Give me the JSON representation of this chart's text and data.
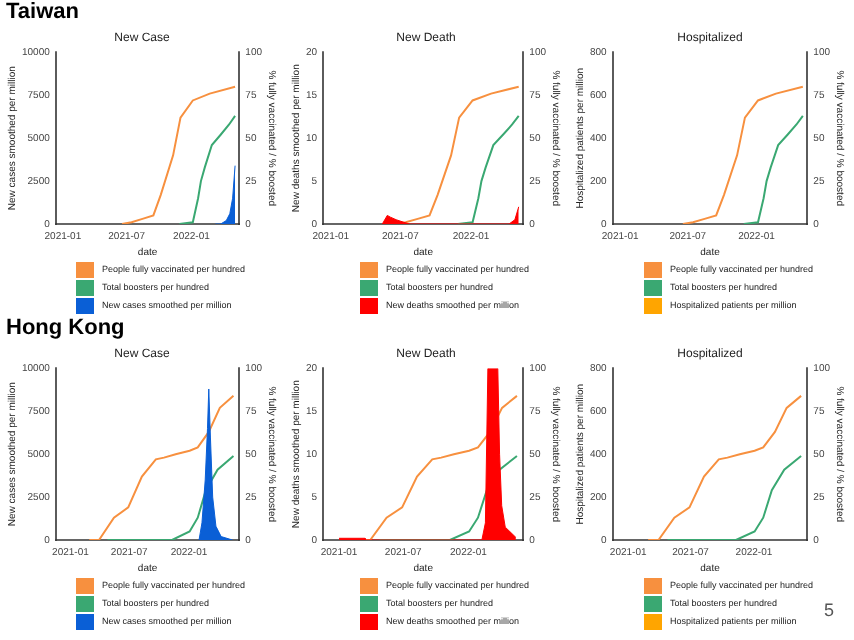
{
  "chart_data": [
    {
      "type": "line",
      "title": "New Case",
      "annotations": [
        "Taiwan"
      ],
      "xlabel": "date",
      "ylabel": "New cases smoothed per million",
      "y2label": "% fully vaccinated / % boosted",
      "xlim": [
        "2020-12-12",
        "2022-05-17"
      ],
      "xticks": [
        {
          "value": "2021-01-01",
          "label": "2021-01"
        },
        {
          "value": "2021-07-01",
          "label": "2021-07"
        },
        {
          "value": "2022-01-01",
          "label": "2022-01"
        }
      ],
      "ylim": [
        0,
        10000
      ],
      "yticks": [
        0,
        2500,
        5000,
        7500,
        10000
      ],
      "y2lim": [
        0,
        100
      ],
      "y2ticks": [
        0,
        25,
        50,
        75,
        100
      ],
      "legend": "bottom",
      "grid": false,
      "series": [
        {
          "name": "People fully vaccinated per hundred",
          "type": "line",
          "axis": "y2",
          "color": "#f7903f",
          "x": [
            "2021-06-18",
            "2021-07-15",
            "2021-08-15",
            "2021-09-15",
            "2021-10-06",
            "2021-11-10",
            "2021-12-01",
            "2022-01-05",
            "2022-02-22",
            "2022-05-05"
          ],
          "values": [
            0,
            1,
            3,
            5,
            17,
            40,
            62,
            72,
            76,
            80
          ]
        },
        {
          "name": "Total boosters per hundred",
          "type": "line",
          "axis": "y2",
          "color": "#3aa872",
          "x": [
            "2021-11-28",
            "2022-01-05",
            "2022-01-20",
            "2022-01-28",
            "2022-02-08",
            "2022-02-28",
            "2022-03-25",
            "2022-04-18",
            "2022-05-05"
          ],
          "values": [
            0,
            1,
            15,
            25,
            33,
            46,
            52,
            58,
            63
          ]
        },
        {
          "name": "New cases smoothed per million",
          "type": "area",
          "axis": "y",
          "color": "#0a5fd6",
          "x": [
            "2022-03-10",
            "2022-03-25",
            "2022-04-10",
            "2022-04-20",
            "2022-04-28",
            "2022-05-05"
          ],
          "values": [
            0,
            0,
            200,
            600,
            1500,
            3400
          ]
        }
      ]
    },
    {
      "type": "line",
      "title": "New Death",
      "xlabel": "date",
      "ylabel": "New deaths smoothed per million",
      "y2label": "% fully vaccinated / % boosted",
      "xlim": [
        "2020-12-12",
        "2022-05-17"
      ],
      "xticks": [
        {
          "value": "2021-01-01",
          "label": "2021-01"
        },
        {
          "value": "2021-07-01",
          "label": "2021-07"
        },
        {
          "value": "2022-01-01",
          "label": "2022-01"
        }
      ],
      "ylim": [
        0,
        20
      ],
      "yticks": [
        0,
        5,
        10,
        15,
        20
      ],
      "y2lim": [
        0,
        100
      ],
      "y2ticks": [
        0,
        25,
        50,
        75,
        100
      ],
      "legend": "bottom",
      "grid": false,
      "series": [
        {
          "name": "People fully vaccinated per hundred",
          "type": "line",
          "axis": "y2",
          "color": "#f7903f",
          "x": [
            "2021-06-18",
            "2021-07-15",
            "2021-08-15",
            "2021-09-15",
            "2021-10-06",
            "2021-11-10",
            "2021-12-01",
            "2022-01-05",
            "2022-02-22",
            "2022-05-05"
          ],
          "values": [
            0,
            1,
            3,
            5,
            17,
            40,
            62,
            72,
            76,
            80
          ]
        },
        {
          "name": "Total boosters per hundred",
          "type": "line",
          "axis": "y2",
          "color": "#3aa872",
          "x": [
            "2021-11-28",
            "2022-01-05",
            "2022-01-20",
            "2022-01-28",
            "2022-02-08",
            "2022-02-28",
            "2022-03-25",
            "2022-04-18",
            "2022-05-05"
          ],
          "values": [
            0,
            1,
            15,
            25,
            33,
            46,
            52,
            58,
            63
          ]
        },
        {
          "name": "New deaths smoothed per million",
          "type": "area",
          "axis": "y",
          "color": "#ff0000",
          "x": [
            "2021-05-15",
            "2021-05-28",
            "2021-06-05",
            "2021-06-20",
            "2021-07-10",
            "2021-07-25",
            "2022-04-10",
            "2022-04-25",
            "2022-05-05"
          ],
          "values": [
            0,
            1,
            0.8,
            0.5,
            0.2,
            0,
            0,
            0.5,
            2
          ]
        }
      ]
    },
    {
      "type": "line",
      "title": "Hospitalized",
      "xlabel": "date",
      "ylabel": "Hospitalized patients per million",
      "y2label": "% fully vaccinated / % boosted",
      "xlim": [
        "2020-12-12",
        "2022-05-17"
      ],
      "xticks": [
        {
          "value": "2021-01-01",
          "label": "2021-01"
        },
        {
          "value": "2021-07-01",
          "label": "2021-07"
        },
        {
          "value": "2022-01-01",
          "label": "2022-01"
        }
      ],
      "ylim": [
        0,
        800
      ],
      "yticks": [
        0,
        200,
        400,
        600,
        800
      ],
      "y2lim": [
        0,
        100
      ],
      "y2ticks": [
        0,
        25,
        50,
        75,
        100
      ],
      "legend": "bottom",
      "grid": false,
      "series": [
        {
          "name": "People fully vaccinated per hundred",
          "type": "line",
          "axis": "y2",
          "color": "#f7903f",
          "x": [
            "2021-06-18",
            "2021-07-15",
            "2021-08-15",
            "2021-09-15",
            "2021-10-06",
            "2021-11-10",
            "2021-12-01",
            "2022-01-05",
            "2022-02-22",
            "2022-05-05"
          ],
          "values": [
            0,
            1,
            3,
            5,
            17,
            40,
            62,
            72,
            76,
            80
          ]
        },
        {
          "name": "Total boosters per hundred",
          "type": "line",
          "axis": "y2",
          "color": "#3aa872",
          "x": [
            "2021-11-28",
            "2022-01-05",
            "2022-01-20",
            "2022-01-28",
            "2022-02-08",
            "2022-02-28",
            "2022-03-25",
            "2022-04-18",
            "2022-05-05"
          ],
          "values": [
            0,
            1,
            15,
            25,
            33,
            46,
            52,
            58,
            63
          ]
        },
        {
          "name": "Hospitalized patients per million",
          "type": "area",
          "color": "#ffa500"
        }
      ]
    },
    {
      "type": "line",
      "title": "New Case",
      "annotations": [
        "Hong Kong"
      ],
      "xlabel": "date",
      "ylabel": "New cases smoothed per million",
      "y2label": "% fully vaccinated / % boosted",
      "xlim": [
        "2020-11-17",
        "2022-06-05"
      ],
      "xticks": [
        {
          "value": "2021-01-01",
          "label": "2021-01"
        },
        {
          "value": "2021-07-01",
          "label": "2021-07"
        },
        {
          "value": "2022-01-01",
          "label": "2022-01"
        }
      ],
      "ylim": [
        0,
        10000
      ],
      "yticks": [
        0,
        2500,
        5000,
        7500,
        10000
      ],
      "y2lim": [
        0,
        100
      ],
      "y2ticks": [
        0,
        25,
        50,
        75,
        100
      ],
      "legend": "bottom",
      "grid": false,
      "series": [
        {
          "name": "People fully vaccinated per hundred",
          "type": "line",
          "axis": "y2",
          "color": "#f7903f",
          "x": [
            "2021-02-28",
            "2021-03-30",
            "2021-05-15",
            "2021-06-28",
            "2021-08-09",
            "2021-09-21",
            "2021-10-16",
            "2021-11-21",
            "2022-01-03",
            "2022-01-28",
            "2022-03-03",
            "2022-04-06",
            "2022-05-18"
          ],
          "values": [
            0,
            0,
            13,
            19,
            37,
            47,
            48,
            50,
            52,
            54,
            63,
            77,
            84
          ]
        },
        {
          "name": "Total boosters per hundred",
          "type": "line",
          "axis": "y2",
          "color": "#3aa872",
          "x": [
            "2021-04-25",
            "2021-11-10",
            "2022-01-03",
            "2022-01-28",
            "2022-02-22",
            "2022-03-30",
            "2022-05-18"
          ],
          "values": [
            0,
            0,
            5,
            13,
            29,
            41,
            49
          ]
        },
        {
          "name": "New cases smoothed per million",
          "type": "area",
          "axis": "y",
          "color": "#0a5fd6",
          "x": [
            "2022-02-01",
            "2022-02-10",
            "2022-02-20",
            "2022-02-27",
            "2022-03-03",
            "2022-03-08",
            "2022-03-15",
            "2022-03-25",
            "2022-04-10",
            "2022-05-15"
          ],
          "values": [
            0,
            1000,
            3500,
            6500,
            8800,
            6000,
            2500,
            800,
            200,
            0
          ]
        }
      ]
    },
    {
      "type": "line",
      "title": "New Death",
      "xlabel": "date",
      "ylabel": "New deaths smoothed per million",
      "y2label": "% fully vaccinated / % boosted",
      "xlim": [
        "2020-11-17",
        "2022-06-05"
      ],
      "xticks": [
        {
          "value": "2021-01-01",
          "label": "2021-01"
        },
        {
          "value": "2021-07-01",
          "label": "2021-07"
        },
        {
          "value": "2022-01-01",
          "label": "2022-01"
        }
      ],
      "ylim": [
        0,
        20
      ],
      "yticks": [
        0,
        5,
        10,
        15,
        20
      ],
      "y2lim": [
        0,
        100
      ],
      "y2ticks": [
        0,
        25,
        50,
        75,
        100
      ],
      "legend": "bottom",
      "grid": false,
      "series": [
        {
          "name": "People fully vaccinated per hundred",
          "type": "line",
          "axis": "y2",
          "color": "#f7903f",
          "x": [
            "2021-02-28",
            "2021-03-30",
            "2021-05-15",
            "2021-06-28",
            "2021-08-09",
            "2021-09-21",
            "2021-10-16",
            "2021-11-21",
            "2022-01-03",
            "2022-01-28",
            "2022-03-03",
            "2022-04-06",
            "2022-05-18"
          ],
          "values": [
            0,
            0,
            13,
            19,
            37,
            47,
            48,
            50,
            52,
            54,
            63,
            77,
            84
          ]
        },
        {
          "name": "Total boosters per hundred",
          "type": "line",
          "axis": "y2",
          "color": "#3aa872",
          "x": [
            "2021-04-25",
            "2021-11-10",
            "2022-01-03",
            "2022-01-28",
            "2022-02-22",
            "2022-03-30",
            "2022-05-18"
          ],
          "values": [
            0,
            0,
            5,
            13,
            29,
            41,
            49
          ]
        },
        {
          "name": "New deaths smoothed per million",
          "type": "area",
          "axis": "y",
          "color": "#ff0000",
          "x": [
            "2021-01-01",
            "2021-03-15",
            "2021-03-16",
            "2022-02-08",
            "2022-02-18",
            "2022-02-25",
            "2022-03-25",
            "2022-03-30",
            "2022-04-05",
            "2022-04-15",
            "2022-05-15"
          ],
          "values": [
            0.2,
            0.2,
            0,
            0,
            2,
            20,
            20,
            10,
            4,
            1.5,
            0.3
          ]
        }
      ]
    },
    {
      "type": "line",
      "title": "Hospitalized",
      "annotations": [
        "5"
      ],
      "xlabel": "date",
      "ylabel": "Hospitalized patients per million",
      "y2label": "% fully vaccinated / % boosted",
      "xlim": [
        "2020-11-17",
        "2022-06-05"
      ],
      "xticks": [
        {
          "value": "2021-01-01",
          "label": "2021-01"
        },
        {
          "value": "2021-07-01",
          "label": "2021-07"
        },
        {
          "value": "2022-01-01",
          "label": "2022-01"
        }
      ],
      "ylim": [
        0,
        800
      ],
      "yticks": [
        0,
        200,
        400,
        600,
        800
      ],
      "y2lim": [
        0,
        100
      ],
      "y2ticks": [
        0,
        25,
        50,
        75,
        100
      ],
      "legend": "bottom",
      "grid": false,
      "series": [
        {
          "name": "People fully vaccinated per hundred",
          "type": "line",
          "axis": "y2",
          "color": "#f7903f",
          "x": [
            "2021-02-28",
            "2021-03-30",
            "2021-05-15",
            "2021-06-28",
            "2021-08-09",
            "2021-09-21",
            "2021-10-16",
            "2021-11-21",
            "2022-01-03",
            "2022-01-28",
            "2022-03-03",
            "2022-04-06",
            "2022-05-18"
          ],
          "values": [
            0,
            0,
            13,
            19,
            37,
            47,
            48,
            50,
            52,
            54,
            63,
            77,
            84
          ]
        },
        {
          "name": "Total boosters per hundred",
          "type": "line",
          "axis": "y2",
          "color": "#3aa872",
          "x": [
            "2021-04-25",
            "2021-11-10",
            "2022-01-03",
            "2022-01-28",
            "2022-02-22",
            "2022-03-30",
            "2022-05-18"
          ],
          "values": [
            0,
            0,
            5,
            13,
            29,
            41,
            49
          ]
        },
        {
          "name": "Hospitalized patients per million",
          "type": "area",
          "color": "#ffa500"
        }
      ]
    }
  ]
}
